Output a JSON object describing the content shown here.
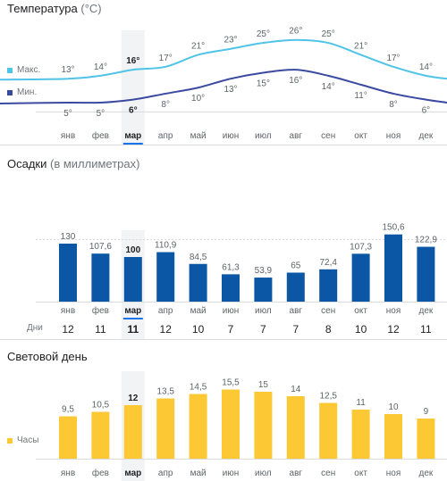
{
  "months": [
    "янв",
    "фев",
    "мар",
    "апр",
    "май",
    "июн",
    "июл",
    "авг",
    "сен",
    "окт",
    "ноя",
    "дек"
  ],
  "selected_month_index": 2,
  "temperature": {
    "title": "Температура",
    "unit": "(°С)",
    "legend_max": "Макс.",
    "legend_min": "Мин."
  },
  "precipitation": {
    "title": "Осадки",
    "unit": "(в миллиметрах)",
    "days_label": "Дни"
  },
  "daylight": {
    "title": "Световой день",
    "legend": "Часы"
  },
  "colors": {
    "max_line": "#4fc3e8",
    "min_line": "#3b4aa0",
    "precip_bar": "#0c57a5",
    "daylight_bar": "#fcc934",
    "selected_band": "#f1f3f4",
    "selected_underline": "#1a73e8",
    "grid": "#dadce0"
  },
  "chart_data": [
    {
      "type": "line",
      "categories": [
        "янв",
        "фев",
        "мар",
        "апр",
        "май",
        "июн",
        "июл",
        "авг",
        "сен",
        "окт",
        "ноя",
        "дек"
      ],
      "series": [
        {
          "name": "Макс.",
          "values": [
            13,
            14,
            16,
            17,
            21,
            23,
            25,
            26,
            25,
            21,
            17,
            14
          ],
          "labels": [
            "13°",
            "14°",
            "16°",
            "17°",
            "21°",
            "23°",
            "25°",
            "26°",
            "25°",
            "21°",
            "17°",
            "14°"
          ]
        },
        {
          "name": "Мин.",
          "values": [
            5,
            5,
            6,
            8,
            10,
            13,
            15,
            16,
            14,
            11,
            8,
            6
          ],
          "labels": [
            "5°",
            "5°",
            "6°",
            "8°",
            "10°",
            "13°",
            "15°",
            "16°",
            "14°",
            "11°",
            "8°",
            "6°"
          ]
        }
      ],
      "ylim": [
        2,
        28
      ]
    },
    {
      "type": "bar",
      "categories": [
        "янв",
        "фев",
        "мар",
        "апр",
        "май",
        "июн",
        "июл",
        "авг",
        "сен",
        "окт",
        "ноя",
        "дек"
      ],
      "values": [
        130,
        107.6,
        100,
        110.9,
        84.5,
        61.3,
        53.9,
        65,
        72.4,
        107.3,
        150.6,
        122.9
      ],
      "labels": [
        "130",
        "107,6",
        "100",
        "110,9",
        "84,5",
        "61,3",
        "53,9",
        "65",
        "72,4",
        "107,3",
        "150,6",
        "122,9"
      ],
      "days": [
        "12",
        "11",
        "11",
        "12",
        "10",
        "7",
        "7",
        "7",
        "8",
        "10",
        "12",
        "11"
      ],
      "ylim": [
        0,
        200
      ]
    },
    {
      "type": "bar",
      "categories": [
        "янв",
        "фев",
        "мар",
        "апр",
        "май",
        "июн",
        "июл",
        "авг",
        "сен",
        "окт",
        "ноя",
        "дек"
      ],
      "values": [
        9.5,
        10.5,
        12,
        13.5,
        14.5,
        15.5,
        15,
        14,
        12.5,
        11,
        10,
        9
      ],
      "labels": [
        "9,5",
        "10,5",
        "12",
        "13,5",
        "14,5",
        "15,5",
        "15",
        "14",
        "12,5",
        "11",
        "10",
        "9"
      ],
      "ylim": [
        0,
        18
      ]
    }
  ]
}
